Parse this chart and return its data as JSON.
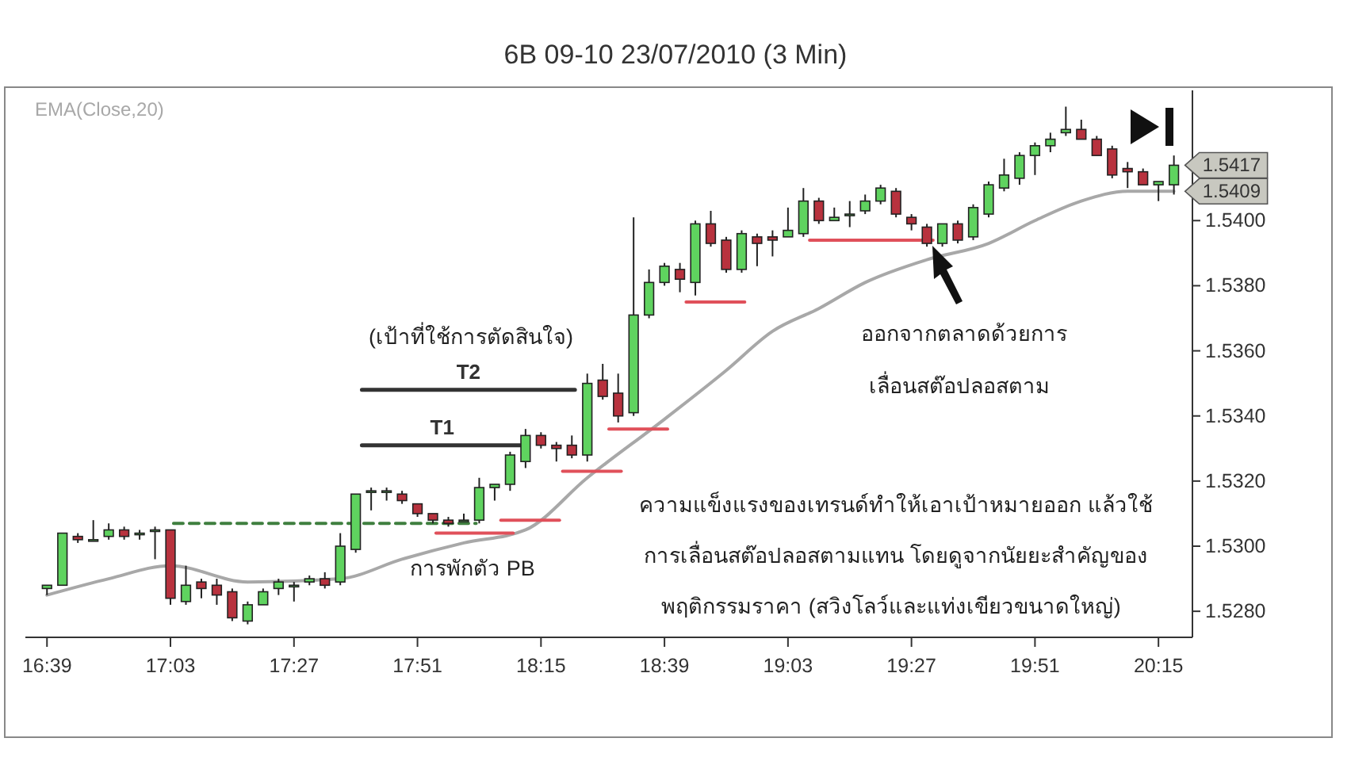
{
  "chart_data": {
    "type": "candlestick",
    "title": "6B 09-10  23/07/2010 (3 Min)",
    "x": [
      16.65,
      16.7,
      16.75,
      16.8,
      16.85,
      16.9,
      16.95,
      17,
      17.05,
      17.1,
      17.15,
      17.2,
      17.25,
      17.3,
      17.35,
      17.4,
      17.45,
      17.5,
      17.55,
      17.6,
      17.65,
      17.7,
      17.75,
      17.8,
      17.85,
      17.9,
      17.95,
      18,
      18.05,
      18.1,
      18.15,
      18.2,
      18.25,
      18.3,
      18.35,
      18.4,
      18.45,
      18.5,
      18.55,
      18.6,
      18.65,
      18.7,
      18.75,
      18.8,
      18.85,
      18.9,
      18.95,
      19,
      19.05,
      19.1,
      19.15,
      19.2,
      19.25,
      19.3,
      19.35,
      19.4,
      19.45,
      19.5,
      19.55,
      19.6,
      19.65,
      19.7,
      19.75,
      19.8,
      19.85,
      19.9,
      19.95,
      20,
      20.05,
      20.1,
      20.15,
      20.2,
      20.25,
      20.3
    ],
    "ohlc": [
      [
        1.5287,
        1.5288,
        1.5285,
        1.5288
      ],
      [
        1.5288,
        1.5304,
        1.5288,
        1.5304
      ],
      [
        1.5303,
        1.5304,
        1.5301,
        1.5302
      ],
      [
        1.5302,
        1.5308,
        1.5302,
        1.5302
      ],
      [
        1.5303,
        1.5307,
        1.5302,
        1.5305
      ],
      [
        1.5305,
        1.5306,
        1.5302,
        1.5303
      ],
      [
        1.5304,
        1.5305,
        1.5302,
        1.5304
      ],
      [
        1.5305,
        1.5306,
        1.5296,
        1.5305
      ],
      [
        1.5305,
        1.5305,
        1.5282,
        1.5284
      ],
      [
        1.5283,
        1.5294,
        1.5282,
        1.5288
      ],
      [
        1.5289,
        1.529,
        1.5284,
        1.5287
      ],
      [
        1.5288,
        1.529,
        1.5282,
        1.5285
      ],
      [
        1.5286,
        1.5287,
        1.5277,
        1.5278
      ],
      [
        1.5277,
        1.5283,
        1.5276,
        1.5282
      ],
      [
        1.5282,
        1.5287,
        1.5282,
        1.5286
      ],
      [
        1.5287,
        1.529,
        1.5285,
        1.5289
      ],
      [
        1.5288,
        1.5289,
        1.5283,
        1.5288
      ],
      [
        1.5289,
        1.5291,
        1.5288,
        1.529
      ],
      [
        1.529,
        1.5292,
        1.5287,
        1.5288
      ],
      [
        1.5289,
        1.5304,
        1.5288,
        1.53
      ],
      [
        1.5299,
        1.5316,
        1.5298,
        1.5316
      ],
      [
        1.5317,
        1.5318,
        1.5311,
        1.5317
      ],
      [
        1.5317,
        1.5318,
        1.5314,
        1.5317
      ],
      [
        1.5316,
        1.5317,
        1.5313,
        1.5314
      ],
      [
        1.5313,
        1.5313,
        1.5309,
        1.531
      ],
      [
        1.531,
        1.531,
        1.5307,
        1.5308
      ],
      [
        1.5308,
        1.5309,
        1.5306,
        1.5307
      ],
      [
        1.5308,
        1.531,
        1.5308,
        1.5308
      ],
      [
        1.5308,
        1.5321,
        1.5307,
        1.5318
      ],
      [
        1.5318,
        1.5319,
        1.5314,
        1.5319
      ],
      [
        1.5319,
        1.5329,
        1.5317,
        1.5328
      ],
      [
        1.5326,
        1.5336,
        1.5324,
        1.5334
      ],
      [
        1.5334,
        1.5335,
        1.533,
        1.5331
      ],
      [
        1.5331,
        1.5332,
        1.5326,
        1.533
      ],
      [
        1.5331,
        1.5334,
        1.5327,
        1.5328
      ],
      [
        1.5328,
        1.5353,
        1.5326,
        1.535
      ],
      [
        1.5351,
        1.5356,
        1.5345,
        1.5346
      ],
      [
        1.5347,
        1.5353,
        1.5338,
        1.534
      ],
      [
        1.5341,
        1.5401,
        1.534,
        1.5371
      ],
      [
        1.5371,
        1.5385,
        1.537,
        1.5381
      ],
      [
        1.5381,
        1.5387,
        1.538,
        1.5386
      ],
      [
        1.5385,
        1.5387,
        1.5378,
        1.5382
      ],
      [
        1.5381,
        1.54,
        1.5377,
        1.5399
      ],
      [
        1.5399,
        1.5403,
        1.5392,
        1.5393
      ],
      [
        1.5394,
        1.5395,
        1.5384,
        1.5385
      ],
      [
        1.5385,
        1.5397,
        1.5384,
        1.5396
      ],
      [
        1.5395,
        1.5396,
        1.5386,
        1.5393
      ],
      [
        1.5395,
        1.5397,
        1.5389,
        1.5394
      ],
      [
        1.5395,
        1.5404,
        1.5395,
        1.5397
      ],
      [
        1.5396,
        1.541,
        1.5395,
        1.5406
      ],
      [
        1.5406,
        1.5407,
        1.5399,
        1.54
      ],
      [
        1.54,
        1.5404,
        1.54,
        1.5401
      ],
      [
        1.5402,
        1.5406,
        1.5398,
        1.5402
      ],
      [
        1.5403,
        1.5408,
        1.5402,
        1.5406
      ],
      [
        1.5406,
        1.5411,
        1.5405,
        1.541
      ],
      [
        1.5409,
        1.541,
        1.5401,
        1.5402
      ],
      [
        1.5401,
        1.5402,
        1.5397,
        1.5399
      ],
      [
        1.5398,
        1.5399,
        1.5392,
        1.5393
      ],
      [
        1.5393,
        1.5399,
        1.5392,
        1.5399
      ],
      [
        1.5399,
        1.54,
        1.5393,
        1.5394
      ],
      [
        1.5395,
        1.5405,
        1.5394,
        1.5404
      ],
      [
        1.5402,
        1.5412,
        1.5401,
        1.5411
      ],
      [
        1.541,
        1.5419,
        1.5409,
        1.5414
      ],
      [
        1.5413,
        1.5421,
        1.5411,
        1.542
      ],
      [
        1.542,
        1.5424,
        1.5414,
        1.5423
      ],
      [
        1.5423,
        1.5427,
        1.5421,
        1.5425
      ],
      [
        1.5427,
        1.5435,
        1.5426,
        1.5428
      ],
      [
        1.5428,
        1.5431,
        1.5425,
        1.5425
      ],
      [
        1.5425,
        1.5426,
        1.542,
        1.542
      ],
      [
        1.5422,
        1.5423,
        1.5413,
        1.5414
      ],
      [
        1.5416,
        1.5418,
        1.541,
        1.5415
      ],
      [
        1.5415,
        1.5416,
        1.5411,
        1.5411
      ],
      [
        1.5411,
        1.5412,
        1.5406,
        1.5412
      ],
      [
        1.5411,
        1.542,
        1.5408,
        1.5417
      ]
    ],
    "colors": [
      "#5fd35f",
      "#5fd35f",
      "#b8323e",
      "#5fd35f",
      "#5fd35f",
      "#b8323e",
      "#5fd35f",
      "#5fd35f",
      "#b8323e",
      "#5fd35f",
      "#b8323e",
      "#b8323e",
      "#b8323e",
      "#5fd35f",
      "#5fd35f",
      "#5fd35f",
      "#5fd35f",
      "#5fd35f",
      "#b8323e",
      "#5fd35f",
      "#5fd35f",
      "#5fd35f",
      "#5fd35f",
      "#b8323e",
      "#b8323e",
      "#b8323e",
      "#b8323e",
      "#5fd35f",
      "#5fd35f",
      "#5fd35f",
      "#5fd35f",
      "#5fd35f",
      "#b8323e",
      "#b8323e",
      "#b8323e",
      "#5fd35f",
      "#b8323e",
      "#b8323e",
      "#5fd35f",
      "#5fd35f",
      "#5fd35f",
      "#b8323e",
      "#5fd35f",
      "#b8323e",
      "#b8323e",
      "#5fd35f",
      "#b8323e",
      "#b8323e",
      "#5fd35f",
      "#5fd35f",
      "#b8323e",
      "#5fd35f",
      "#5fd35f",
      "#5fd35f",
      "#5fd35f",
      "#b8323e",
      "#b8323e",
      "#b8323e",
      "#5fd35f",
      "#b8323e",
      "#5fd35f",
      "#5fd35f",
      "#5fd35f",
      "#5fd35f",
      "#5fd35f",
      "#5fd35f",
      "#5fd35f",
      "#b8323e",
      "#b8323e",
      "#b8323e",
      "#b8323e",
      "#b8323e",
      "#5fd35f",
      "#5fd35f"
    ],
    "series": [
      {
        "type": "line",
        "name": "EMA(Close,20)",
        "color": "#a8a8a8",
        "x": [
          16.65,
          16.85,
          17.05,
          17.3,
          17.6,
          17.8,
          18,
          18.2,
          18.4,
          18.65,
          18.85,
          19,
          19.15,
          19.3,
          19.5,
          19.7,
          19.85,
          20,
          20.15,
          20.3
        ],
        "values": [
          1.5285,
          1.529,
          1.5294,
          1.5289,
          1.529,
          1.5296,
          1.5301,
          1.5305,
          1.5321,
          1.5339,
          1.5354,
          1.5366,
          1.5373,
          1.5381,
          1.5388,
          1.5393,
          1.54,
          1.5406,
          1.5409,
          1.5409
        ]
      },
      {
        "type": "line",
        "name": "T2",
        "color": "#333333",
        "x": [
          17.67,
          18.36
        ],
        "values": [
          1.5348,
          1.5348
        ]
      },
      {
        "type": "line",
        "name": "T1",
        "color": "#333333",
        "x": [
          17.67,
          18.19
        ],
        "values": [
          1.5331,
          1.5331
        ]
      },
      {
        "type": "line",
        "color": "#3f7f3f",
        "line_style": "dashed",
        "x": [
          17.06,
          18.04
        ],
        "values": [
          1.5307,
          1.5307
        ]
      },
      {
        "type": "line",
        "color": "#e0505a",
        "x": [
          17.91,
          18.16
        ],
        "values": [
          1.5304,
          1.5304
        ]
      },
      {
        "type": "line",
        "color": "#e0505a",
        "x": [
          18.12,
          18.31
        ],
        "values": [
          1.5308,
          1.5308
        ]
      },
      {
        "type": "line",
        "color": "#e0505a",
        "x": [
          18.32,
          18.51
        ],
        "values": [
          1.5323,
          1.5323
        ]
      },
      {
        "type": "line",
        "color": "#e0505a",
        "x": [
          18.47,
          18.66
        ],
        "values": [
          1.5336,
          1.5336
        ]
      },
      {
        "type": "line",
        "color": "#e0505a",
        "x": [
          18.72,
          18.91
        ],
        "values": [
          1.5375,
          1.5375
        ]
      },
      {
        "type": "line",
        "color": "#e0505a",
        "x": [
          19.12,
          19.52
        ],
        "values": [
          1.5394,
          1.5394
        ]
      }
    ],
    "xlim": [
      16.58,
      20.36
    ],
    "xticks": [
      {
        "value": 16.65,
        "label": "16:39"
      },
      {
        "value": 17.05,
        "label": "17:03"
      },
      {
        "value": 17.45,
        "label": "17:27"
      },
      {
        "value": 17.85,
        "label": "17:51"
      },
      {
        "value": 18.25,
        "label": "18:15"
      },
      {
        "value": 18.65,
        "label": "18:39"
      },
      {
        "value": 19.05,
        "label": "19:03"
      },
      {
        "value": 19.45,
        "label": "19:27"
      },
      {
        "value": 19.85,
        "label": "19:51"
      },
      {
        "value": 20.25,
        "label": "20:15"
      }
    ],
    "ylim": [
      1.5272,
      1.544
    ],
    "yticks": [
      {
        "value": 1.528,
        "label": "1.5280"
      },
      {
        "value": 1.53,
        "label": "1.5300"
      },
      {
        "value": 1.532,
        "label": "1.5320"
      },
      {
        "value": 1.534,
        "label": "1.5340"
      },
      {
        "value": 1.536,
        "label": "1.5360"
      },
      {
        "value": 1.538,
        "label": "1.5380"
      },
      {
        "value": 1.54,
        "label": "1.5400"
      }
    ],
    "legend": "top left",
    "annotations": [
      {
        "text": "1.5417",
        "x": 20.3,
        "y": 1.5417
      },
      {
        "text": "1.5409",
        "x": 20.3,
        "y": 1.5409
      },
      "(เป้าที่ใช้การตัดสินใจ)",
      "การพักตัว PB",
      "ความแข็งแรงของเทรนด์ทำให้เอาเป้าหมายออก แล้วใช้",
      "การเลื่อนสต๊อปลอสตามแทน โดยดูจากนัยยะสำคัญของ",
      "พฤติกรรมราคา (สวิงโลว์และแท่งเขียวขนาดใหญ่)",
      "ออกจากตลาดด้วยการ",
      "เลื่อนสต๊อปลอสตาม"
    ]
  }
}
